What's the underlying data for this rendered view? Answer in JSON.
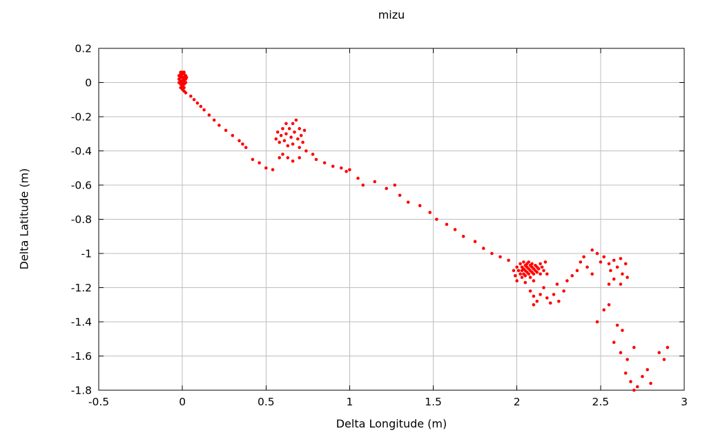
{
  "chart_data": {
    "type": "scatter",
    "title": "mizu",
    "xlabel": "Delta Longitude (m)",
    "ylabel": "Delta Latitude (m)",
    "xlim": [
      -0.5,
      3
    ],
    "ylim": [
      -1.8,
      0.2
    ],
    "xticks": [
      -0.5,
      0,
      0.5,
      1,
      1.5,
      2,
      2.5,
      3
    ],
    "xtick_labels": [
      "-0.5",
      "0",
      "0.5",
      "1",
      "1.5",
      "2",
      "2.5",
      "3"
    ],
    "yticks": [
      0.2,
      0,
      -0.2,
      -0.4,
      -0.6,
      -0.8,
      -1,
      -1.2,
      -1.4,
      -1.6,
      -1.8
    ],
    "ytick_labels": [
      "0.2",
      "0",
      "-0.2",
      "-0.4",
      "-0.6",
      "-0.8",
      "-1",
      "-1.2",
      "-1.4",
      "-1.6",
      "-1.8"
    ],
    "grid": true,
    "legend": false,
    "point_color": "#ff0000",
    "points": [
      [
        -0.02,
        0.04
      ],
      [
        -0.01,
        0.05
      ],
      [
        0,
        0.05
      ],
      [
        0.01,
        0.05
      ],
      [
        0.02,
        0.04
      ],
      [
        -0.02,
        0.02
      ],
      [
        -0.01,
        0.03
      ],
      [
        0,
        0.03
      ],
      [
        0.01,
        0.03
      ],
      [
        0.02,
        0.02
      ],
      [
        -0.01,
        0.01
      ],
      [
        0,
        0.01
      ],
      [
        0.01,
        0.01
      ],
      [
        0,
        0.06
      ],
      [
        -0.01,
        0.06
      ],
      [
        0.01,
        0.06
      ],
      [
        -0.02,
        0
      ],
      [
        0,
        0
      ],
      [
        0.02,
        0
      ],
      [
        -0.01,
        -0.01
      ],
      [
        0.01,
        -0.01
      ],
      [
        0,
        -0.02
      ],
      [
        -0.01,
        -0.03
      ],
      [
        0.01,
        -0.03
      ],
      [
        0,
        -0.04
      ],
      [
        0.005,
        0.02
      ],
      [
        -0.005,
        0.045
      ],
      [
        0.015,
        0.035
      ],
      [
        -0.015,
        0.035
      ],
      [
        0.025,
        0.03
      ],
      [
        0.01,
        -0.05
      ],
      [
        0.02,
        -0.06
      ],
      [
        0.05,
        -0.08
      ],
      [
        0.07,
        -0.1
      ],
      [
        0.09,
        -0.12
      ],
      [
        0.11,
        -0.14
      ],
      [
        0.13,
        -0.16
      ],
      [
        0.16,
        -0.19
      ],
      [
        0.19,
        -0.22
      ],
      [
        0.22,
        -0.25
      ],
      [
        0.26,
        -0.28
      ],
      [
        0.3,
        -0.31
      ],
      [
        0.34,
        -0.34
      ],
      [
        0.36,
        -0.36
      ],
      [
        0.38,
        -0.38
      ],
      [
        0.42,
        -0.45
      ],
      [
        0.46,
        -0.47
      ],
      [
        0.5,
        -0.5
      ],
      [
        0.54,
        -0.51
      ],
      [
        0.56,
        -0.33
      ],
      [
        0.57,
        -0.29
      ],
      [
        0.58,
        -0.35
      ],
      [
        0.59,
        -0.31
      ],
      [
        0.6,
        -0.27
      ],
      [
        0.61,
        -0.34
      ],
      [
        0.62,
        -0.24
      ],
      [
        0.62,
        -0.3
      ],
      [
        0.63,
        -0.37
      ],
      [
        0.64,
        -0.27
      ],
      [
        0.65,
        -0.32
      ],
      [
        0.66,
        -0.24
      ],
      [
        0.66,
        -0.36
      ],
      [
        0.67,
        -0.29
      ],
      [
        0.68,
        -0.22
      ],
      [
        0.69,
        -0.33
      ],
      [
        0.7,
        -0.27
      ],
      [
        0.7,
        -0.38
      ],
      [
        0.71,
        -0.31
      ],
      [
        0.72,
        -0.35
      ],
      [
        0.73,
        -0.28
      ],
      [
        0.74,
        -0.4
      ],
      [
        0.6,
        -0.42
      ],
      [
        0.63,
        -0.44
      ],
      [
        0.66,
        -0.46
      ],
      [
        0.7,
        -0.44
      ],
      [
        0.58,
        -0.44
      ],
      [
        0.78,
        -0.42
      ],
      [
        0.8,
        -0.45
      ],
      [
        0.85,
        -0.47
      ],
      [
        0.9,
        -0.49
      ],
      [
        0.95,
        -0.5
      ],
      [
        0.98,
        -0.52
      ],
      [
        1,
        -0.51
      ],
      [
        1.05,
        -0.56
      ],
      [
        1.08,
        -0.6
      ],
      [
        1.15,
        -0.58
      ],
      [
        1.22,
        -0.62
      ],
      [
        1.27,
        -0.6
      ],
      [
        1.3,
        -0.66
      ],
      [
        1.35,
        -0.7
      ],
      [
        1.42,
        -0.72
      ],
      [
        1.48,
        -0.76
      ],
      [
        1.52,
        -0.8
      ],
      [
        1.58,
        -0.83
      ],
      [
        1.63,
        -0.86
      ],
      [
        1.68,
        -0.9
      ],
      [
        1.75,
        -0.93
      ],
      [
        1.8,
        -0.97
      ],
      [
        1.85,
        -1
      ],
      [
        1.9,
        -1.02
      ],
      [
        1.95,
        -1.04
      ],
      [
        2,
        -1.08
      ],
      [
        2.01,
        -1.1
      ],
      [
        2.02,
        -1.06
      ],
      [
        2.02,
        -1.12
      ],
      [
        2.03,
        -1.08
      ],
      [
        2.03,
        -1.1
      ],
      [
        2.04,
        -1.05
      ],
      [
        2.04,
        -1.09
      ],
      [
        2.04,
        -1.12
      ],
      [
        2.05,
        -1.07
      ],
      [
        2.05,
        -1.1
      ],
      [
        2.05,
        -1.13
      ],
      [
        2.06,
        -1.06
      ],
      [
        2.06,
        -1.08
      ],
      [
        2.06,
        -1.11
      ],
      [
        2.07,
        -1.05
      ],
      [
        2.07,
        -1.09
      ],
      [
        2.07,
        -1.12
      ],
      [
        2.08,
        -1.07
      ],
      [
        2.08,
        -1.1
      ],
      [
        2.09,
        -1.06
      ],
      [
        2.09,
        -1.08
      ],
      [
        2.09,
        -1.11
      ],
      [
        2.1,
        -1.09
      ],
      [
        2.1,
        -1.12
      ],
      [
        2.11,
        -1.07
      ],
      [
        2.11,
        -1.1
      ],
      [
        2.12,
        -1.08
      ],
      [
        2.12,
        -1.11
      ],
      [
        2.13,
        -1.09
      ],
      [
        2.14,
        -1.06
      ],
      [
        2.14,
        -1.12
      ],
      [
        2.15,
        -1.08
      ],
      [
        2.16,
        -1.1
      ],
      [
        2.03,
        -1.14
      ],
      [
        2.08,
        -1.14
      ],
      [
        1.98,
        -1.1
      ],
      [
        1.99,
        -1.13
      ],
      [
        2,
        -1.16
      ],
      [
        2.05,
        -1.17
      ],
      [
        2.1,
        -1.16
      ],
      [
        2.17,
        -1.05
      ],
      [
        2.18,
        -1.12
      ],
      [
        2.08,
        -1.22
      ],
      [
        2.1,
        -1.25
      ],
      [
        2.12,
        -1.28
      ],
      [
        2.1,
        -1.3
      ],
      [
        2.14,
        -1.24
      ],
      [
        2.16,
        -1.2
      ],
      [
        2.18,
        -1.26
      ],
      [
        2.2,
        -1.29
      ],
      [
        2.22,
        -1.24
      ],
      [
        2.25,
        -1.28
      ],
      [
        2.28,
        -1.22
      ],
      [
        2.24,
        -1.18
      ],
      [
        2.3,
        -1.16
      ],
      [
        2.33,
        -1.13
      ],
      [
        2.36,
        -1.1
      ],
      [
        2.38,
        -1.05
      ],
      [
        2.4,
        -1.02
      ],
      [
        2.42,
        -1.08
      ],
      [
        2.45,
        -1.12
      ],
      [
        2.45,
        -0.98
      ],
      [
        2.48,
        -1
      ],
      [
        2.5,
        -1.05
      ],
      [
        2.52,
        -1.02
      ],
      [
        2.55,
        -1.06
      ],
      [
        2.56,
        -1.1
      ],
      [
        2.58,
        -1.04
      ],
      [
        2.6,
        -1.08
      ],
      [
        2.62,
        -1.03
      ],
      [
        2.63,
        -1.12
      ],
      [
        2.65,
        -1.06
      ],
      [
        2.58,
        -1.15
      ],
      [
        2.55,
        -1.18
      ],
      [
        2.62,
        -1.18
      ],
      [
        2.66,
        -1.14
      ],
      [
        2.48,
        -1.4
      ],
      [
        2.52,
        -1.33
      ],
      [
        2.55,
        -1.3
      ],
      [
        2.6,
        -1.42
      ],
      [
        2.63,
        -1.45
      ],
      [
        2.58,
        -1.52
      ],
      [
        2.62,
        -1.58
      ],
      [
        2.66,
        -1.62
      ],
      [
        2.7,
        -1.55
      ],
      [
        2.65,
        -1.7
      ],
      [
        2.68,
        -1.75
      ],
      [
        2.72,
        -1.78
      ],
      [
        2.7,
        -1.8
      ],
      [
        2.75,
        -1.72
      ],
      [
        2.78,
        -1.68
      ],
      [
        2.8,
        -1.76
      ],
      [
        2.85,
        -1.58
      ],
      [
        2.88,
        -1.62
      ],
      [
        2.9,
        -1.55
      ]
    ]
  }
}
